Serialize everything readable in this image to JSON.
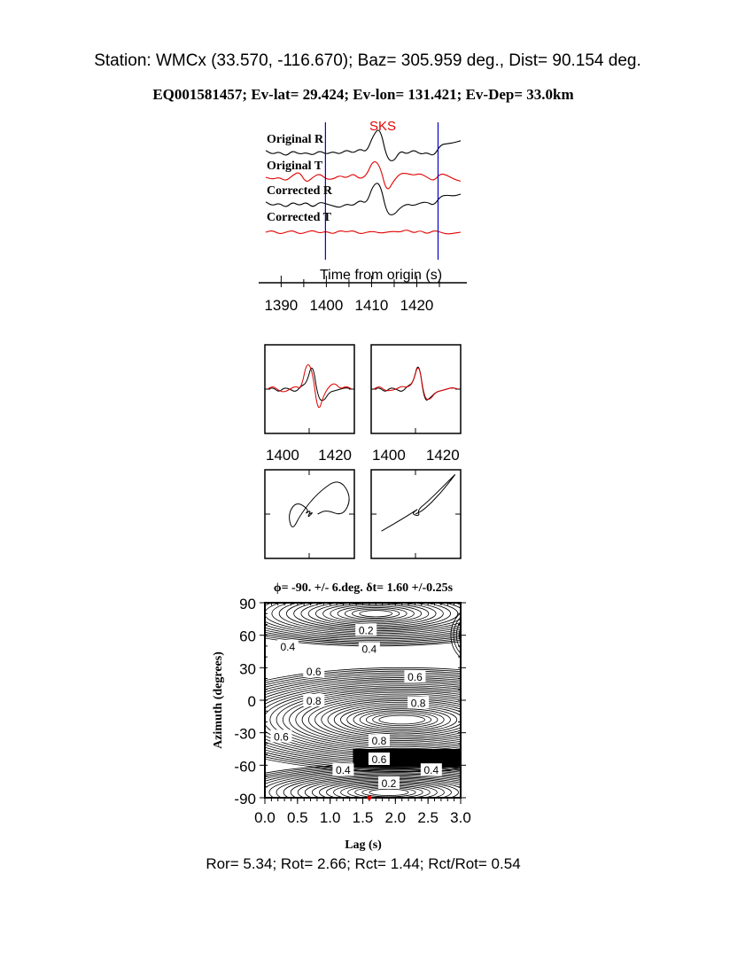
{
  "header": {
    "station_line": "Station: WMCx (33.570, -116.670); Baz=  305.959 deg., Dist=   90.154 deg.",
    "event_line": "EQ001581457; Ev-lat=  29.424; Ev-lon= 131.421; Ev-Dep= 33.0km"
  },
  "footer": "Ror= 5.34; Rot= 2.66; Rct= 1.44; Rct/Rot= 0.54",
  "colors": {
    "radial": "#000000",
    "transverse": "#e00000",
    "window": "#0000cc"
  },
  "chart_data": [
    {
      "type": "line",
      "title": "",
      "phase_label": "SKS",
      "xlabel": "Time from origin (s)",
      "xlim": [
        1386.6,
        1429.7
      ],
      "xticks": [
        "1390",
        "1400",
        "1410",
        "1420"
      ],
      "window": [
        1399.8,
        1424.7
      ],
      "series": [
        {
          "name": "Original R",
          "color": "#000000",
          "y": [
            0.1,
            -0.1,
            0.05,
            -0.2,
            0.1,
            -0.1,
            0.0,
            -0.15,
            0.1,
            -0.1,
            0.05,
            -0.1,
            0.15,
            -0.05,
            0.2,
            0.0,
            0.9,
            1.3,
            -0.3,
            -0.5,
            0.1,
            -0.1,
            0.15,
            -0.1,
            0.0,
            -0.2,
            0.4,
            0.45,
            0.5,
            0.6
          ]
        },
        {
          "name": "Original T",
          "color": "#e00000",
          "y": [
            0.0,
            -0.1,
            0.0,
            -0.2,
            0.1,
            0.3,
            -0.3,
            0.0,
            0.2,
            -0.1,
            -0.1,
            0.1,
            -0.05,
            0.2,
            -0.1,
            0.1,
            0.9,
            0.6,
            -0.8,
            -0.2,
            0.2,
            0.2,
            0.1,
            0.2,
            0.0,
            -0.2,
            0.2,
            0.1,
            -0.1,
            -0.2
          ]
        },
        {
          "name": "Corrected R",
          "color": "#000000",
          "y": [
            0.1,
            -0.1,
            0.05,
            -0.2,
            0.1,
            -0.1,
            0.1,
            -0.2,
            0.1,
            0.0,
            -0.1,
            -0.2,
            0.0,
            -0.1,
            0.2,
            0.0,
            1.0,
            1.1,
            -0.5,
            -0.6,
            -0.2,
            0.0,
            -0.1,
            0.05,
            0.1,
            -0.1,
            0.4,
            0.45,
            0.4,
            0.5
          ]
        },
        {
          "name": "Corrected T",
          "color": "#e00000",
          "y": [
            0.0,
            0.1,
            -0.1,
            0.0,
            0.1,
            -0.1,
            0.0,
            0.1,
            -0.05,
            0.05,
            -0.1,
            0.1,
            0.0,
            0.1,
            -0.1,
            0.0,
            0.05,
            -0.05,
            0.0,
            0.05,
            0.0,
            0.15,
            -0.05,
            0.1,
            -0.1,
            0.1,
            0.0,
            -0.1,
            -0.05,
            0.0
          ]
        }
      ]
    },
    {
      "type": "line",
      "title": "",
      "xlim": [
        1400,
        1425
      ],
      "xticks": [
        "1400",
        "1420"
      ],
      "series": [
        {
          "color": "#000000",
          "y": [
            0,
            0.05,
            -0.1,
            0.05,
            0,
            -0.1,
            0.1,
            0.2,
            0.9,
            -0.3,
            -0.4,
            -0.1,
            -0.05,
            0.0,
            0.05,
            0.0
          ]
        },
        {
          "color": "#e00000",
          "y": [
            0,
            0.1,
            -0.05,
            -0.1,
            0.0,
            0.1,
            0.0,
            0.9,
            0.6,
            -0.8,
            -0.2,
            0.1,
            0.2,
            0.0,
            0.1,
            0.0
          ]
        }
      ]
    },
    {
      "type": "line",
      "title": "",
      "xlim": [
        1400,
        1425
      ],
      "xticks": [
        "1400",
        "1420"
      ],
      "series": [
        {
          "color": "#000000",
          "y": [
            0,
            0.05,
            -0.1,
            0.05,
            0,
            -0.1,
            0.1,
            0.2,
            0.95,
            -0.4,
            -0.3,
            -0.1,
            -0.05,
            0.0,
            0.05,
            0.0
          ]
        },
        {
          "color": "#e00000",
          "y": [
            0,
            0.1,
            -0.05,
            -0.05,
            0.0,
            0.1,
            0.05,
            0.2,
            0.9,
            -0.3,
            -0.35,
            -0.1,
            -0.05,
            0.0,
            0.05,
            0.0
          ]
        }
      ]
    },
    {
      "type": "line",
      "title": "",
      "series": [
        {
          "color": "#000000",
          "points": [
            [
              0,
              0
            ],
            [
              0.1,
              0.05
            ],
            [
              -0.05,
              -0.1
            ],
            [
              0.05,
              0.1
            ],
            [
              -0.1,
              0
            ],
            [
              0,
              0.1
            ],
            [
              -0.3,
              0.3
            ],
            [
              -0.5,
              0
            ],
            [
              -0.4,
              -0.4
            ],
            [
              -0.2,
              0
            ],
            [
              0.2,
              0.5
            ],
            [
              0.7,
              0.85
            ],
            [
              1.0,
              0.4
            ],
            [
              0.8,
              -0.05
            ],
            [
              0.4,
              0.1
            ],
            [
              0.2,
              0.0
            ]
          ]
        }
      ]
    },
    {
      "type": "line",
      "title": "",
      "series": [
        {
          "color": "#000000",
          "points": [
            [
              -0.8,
              -0.4
            ],
            [
              -0.2,
              -0.05
            ],
            [
              0.1,
              0.15
            ],
            [
              -0.1,
              0.0
            ],
            [
              0.1,
              -0.05
            ],
            [
              0.05,
              0.1
            ],
            [
              0.3,
              0.3
            ],
            [
              0.9,
              0.9
            ],
            [
              0.95,
              0.95
            ],
            [
              0.6,
              0.5
            ],
            [
              0.2,
              0.1
            ],
            [
              0,
              0
            ]
          ]
        }
      ]
    },
    {
      "type": "contour",
      "title": "ϕ= -90. +/- 6.deg. δt= 1.60 +/-0.25s",
      "xlabel": "Lag (s)",
      "ylabel": "Azimuth (degrees)",
      "xlim": [
        0,
        3
      ],
      "ylim": [
        -90,
        90
      ],
      "xticks": [
        "0.0",
        "0.5",
        "1.0",
        "1.5",
        "2.0",
        "2.5",
        "3.0"
      ],
      "yticks": [
        "90",
        "60",
        "30",
        "0",
        "-30",
        "-60",
        "-90"
      ],
      "contour_labels": [
        "0.2",
        "0.4",
        "0.4",
        "0.6",
        "0.6",
        "0.8",
        "0.8",
        "0.6",
        "0.8",
        "0.6",
        "0.4",
        "0.4",
        "0.2"
      ],
      "best_fit": {
        "lag": 1.6,
        "azimuth": -90
      }
    }
  ]
}
